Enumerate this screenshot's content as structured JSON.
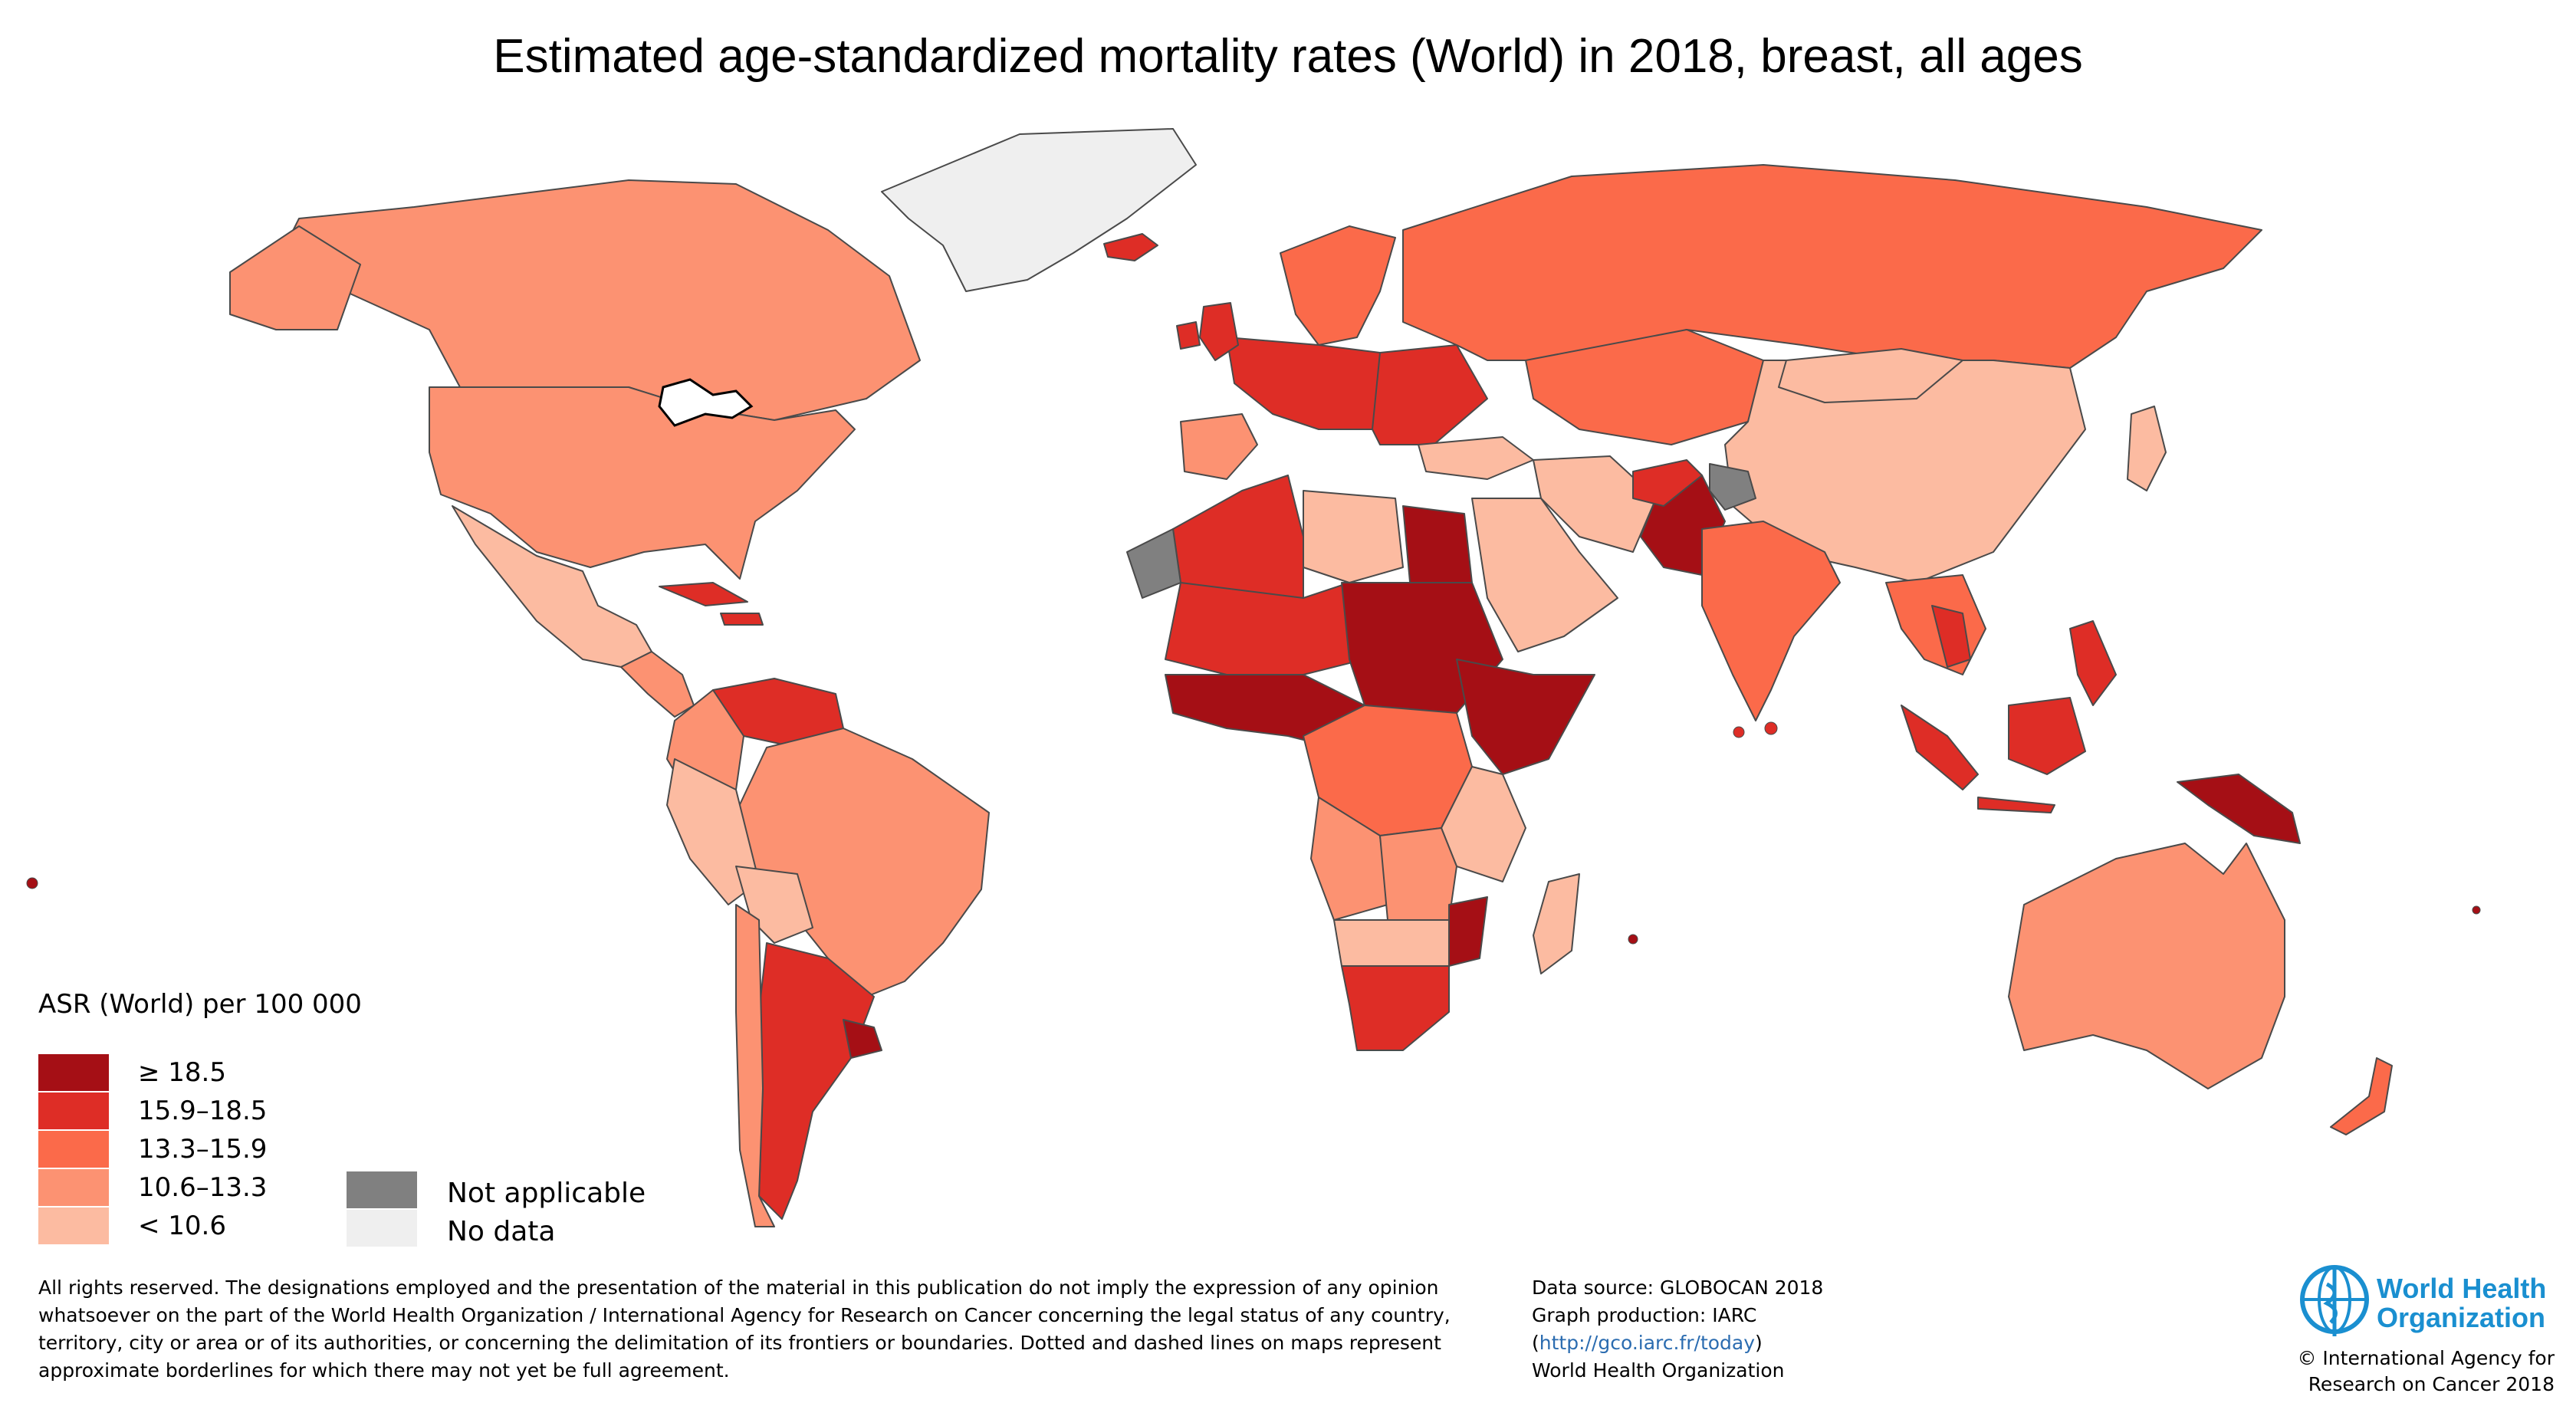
{
  "title": "Estimated age-standardized mortality rates (World) in 2018, breast, all ages",
  "legend": {
    "title": "ASR (World) per 100 000",
    "bins": [
      {
        "label": "≥ 18.5",
        "color": "#a50f15"
      },
      {
        "label": "15.9–18.5",
        "color": "#de2d26"
      },
      {
        "label": "13.3–15.9",
        "color": "#fb6a4a"
      },
      {
        "label": "10.6–13.3",
        "color": "#fc9272"
      },
      {
        "label": "< 10.6",
        "color": "#fcbba1"
      }
    ],
    "not_applicable": {
      "label": "Not applicable",
      "color": "#808080"
    },
    "no_data": {
      "label": "No data",
      "color": "#efefef"
    }
  },
  "disclaimer": "All rights reserved. The designations employed and the presentation of the material in this publication do not imply the expression of any opinion whatsoever on the part of the World Health Organization / International Agency for Research on Cancer concerning the legal status of any country, territory, city or area or of its authorities, or concerning the delimitation of its frontiers or boundaries. Dotted and dashed lines on maps represent approximate borderlines for which there may not yet be full agreement.",
  "source": {
    "line1": "Data source: GLOBOCAN 2018",
    "line2": "Graph production: IARC",
    "link": "http://gco.iarc.fr/today",
    "line4": "World Health Organization"
  },
  "logo": {
    "line1": "World Health",
    "line2": "Organization"
  },
  "copyright": {
    "line1": "© International Agency for",
    "line2": "Research on Cancer 2018"
  }
}
